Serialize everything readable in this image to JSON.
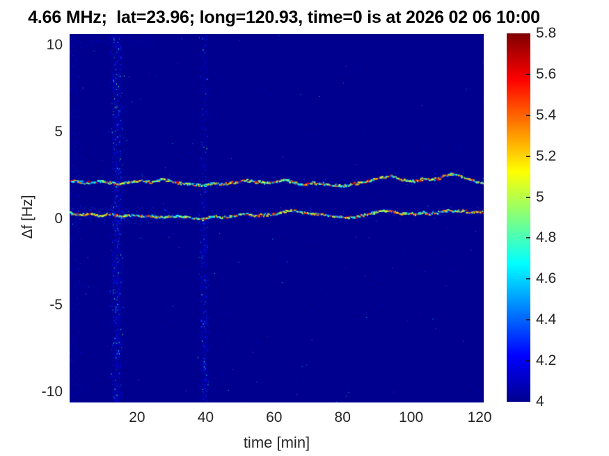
{
  "title": "4.66 MHz;  lat=23.96; long=120.93, time=0 is at 2026 02 06 10:00",
  "axes": {
    "xlabel": "time [min]",
    "ylabel": "Δf [Hz]"
  },
  "colorbar": {
    "colormap": "jet",
    "min": 4,
    "max": 5.8,
    "tick_labels": [
      "5.8",
      "5.6",
      "5.4",
      "5.2",
      "5",
      "4.8",
      "4.6",
      "4.4",
      "4.2",
      "4"
    ],
    "tick_values": [
      5.8,
      5.6,
      5.4,
      5.2,
      5,
      4.8,
      4.6,
      4.4,
      4.2,
      4
    ]
  },
  "chart_data": {
    "type": "heatmap",
    "title": "4.66 MHz;  lat=23.96; long=120.93, time=0 is at 2026 02 06 10:00",
    "xlabel": "time [min]",
    "ylabel": "Δf [Hz]",
    "xlim": [
      0.3,
      121.2
    ],
    "ylim": [
      -10.6,
      10.65
    ],
    "xticks": [
      20,
      40,
      60,
      80,
      100,
      120
    ],
    "yticks": [
      10,
      5,
      0,
      -5,
      -10
    ],
    "grid": false,
    "legend": false,
    "color_range": [
      4,
      5.8
    ],
    "background_value": 4,
    "background_color": "#00008f",
    "features": {
      "doppler_traces": [
        {
          "name": "upper-trace",
          "mean_df_hz": 2.15,
          "points": [
            [
              0.3,
              2.25
            ],
            [
              3,
              2.15
            ],
            [
              6,
              2.1
            ],
            [
              9,
              2.2
            ],
            [
              12,
              2.1
            ],
            [
              15,
              2.05
            ],
            [
              18,
              2.15
            ],
            [
              21,
              2.2
            ],
            [
              24,
              2.15
            ],
            [
              27,
              2.3
            ],
            [
              30,
              2.2
            ],
            [
              33,
              2.05
            ],
            [
              36,
              2.0
            ],
            [
              39,
              1.95
            ],
            [
              42,
              2.1
            ],
            [
              45,
              2.05
            ],
            [
              48,
              2.1
            ],
            [
              52,
              2.25
            ],
            [
              55,
              2.15
            ],
            [
              58,
              2.1
            ],
            [
              61,
              2.2
            ],
            [
              63,
              2.3
            ],
            [
              65,
              2.15
            ],
            [
              68,
              2.0
            ],
            [
              71,
              2.1
            ],
            [
              74,
              2.05
            ],
            [
              77,
              1.95
            ],
            [
              80,
              1.9
            ],
            [
              83,
              2.05
            ],
            [
              86,
              2.15
            ],
            [
              89,
              2.3
            ],
            [
              92,
              2.45
            ],
            [
              94,
              2.5
            ],
            [
              96,
              2.35
            ],
            [
              98,
              2.25
            ],
            [
              100,
              2.2
            ],
            [
              102,
              2.25
            ],
            [
              104,
              2.35
            ],
            [
              106,
              2.3
            ],
            [
              108,
              2.35
            ],
            [
              110,
              2.55
            ],
            [
              112,
              2.6
            ],
            [
              114,
              2.5
            ],
            [
              116,
              2.35
            ],
            [
              118,
              2.2
            ],
            [
              121,
              2.05
            ]
          ]
        },
        {
          "name": "lower-trace",
          "mean_df_hz": 0.28,
          "points": [
            [
              0.3,
              0.35
            ],
            [
              3,
              0.25
            ],
            [
              6,
              0.3
            ],
            [
              9,
              0.2
            ],
            [
              12,
              0.3
            ],
            [
              15,
              0.15
            ],
            [
              18,
              0.25
            ],
            [
              21,
              0.15
            ],
            [
              24,
              0.2
            ],
            [
              27,
              0.1
            ],
            [
              30,
              0.2
            ],
            [
              33,
              0.15
            ],
            [
              36,
              0.05
            ],
            [
              39,
              0.0
            ],
            [
              42,
              0.15
            ],
            [
              45,
              0.1
            ],
            [
              48,
              0.2
            ],
            [
              51,
              0.3
            ],
            [
              54,
              0.2
            ],
            [
              57,
              0.25
            ],
            [
              60,
              0.3
            ],
            [
              63,
              0.45
            ],
            [
              66,
              0.5
            ],
            [
              69,
              0.35
            ],
            [
              72,
              0.3
            ],
            [
              75,
              0.25
            ],
            [
              78,
              0.15
            ],
            [
              81,
              0.1
            ],
            [
              84,
              0.15
            ],
            [
              87,
              0.3
            ],
            [
              90,
              0.45
            ],
            [
              93,
              0.5
            ],
            [
              95,
              0.4
            ],
            [
              97,
              0.3
            ],
            [
              99,
              0.35
            ],
            [
              101,
              0.3
            ],
            [
              103,
              0.4
            ],
            [
              105,
              0.3
            ],
            [
              107,
              0.35
            ],
            [
              109,
              0.45
            ],
            [
              111,
              0.5
            ],
            [
              113,
              0.45
            ],
            [
              115,
              0.5
            ],
            [
              117,
              0.35
            ],
            [
              119,
              0.45
            ],
            [
              121,
              0.4
            ]
          ]
        }
      ],
      "vertical_noise_bands": [
        {
          "time_min": 14,
          "width_min": 2.5,
          "relative_density": 1.0
        },
        {
          "time_min": 39.5,
          "width_min": 1.8,
          "relative_density": 0.7
        }
      ],
      "sparse_background_speckle": true
    }
  }
}
